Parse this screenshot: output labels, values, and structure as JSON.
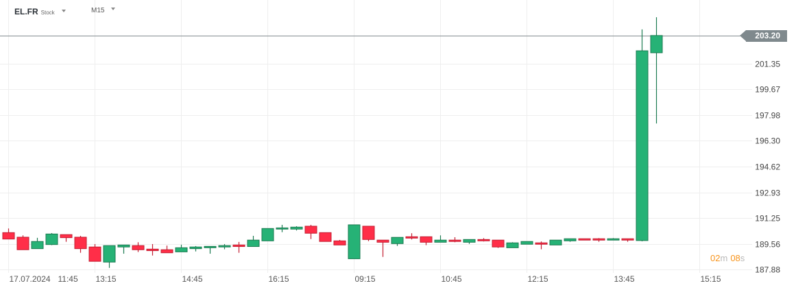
{
  "header": {
    "symbol": "EL.FR",
    "asset_type": "Stock",
    "timeframe": "M15"
  },
  "countdown": {
    "minutes": "02",
    "minutes_unit": "m",
    "seconds": "08",
    "seconds_unit": "s"
  },
  "colors": {
    "up": "#26b276",
    "up_border": "#1b7a50",
    "down": "#ff2e48",
    "down_border": "#c21d31",
    "grid": "#eeeeee",
    "price_line": "#7f898d",
    "countdown": "#f7931a"
  },
  "chart_data": {
    "type": "candlestick",
    "title": "EL.FR M15",
    "current_price": "203.20",
    "ylim": [
      187.88,
      204.5
    ],
    "y_ticks": [
      "201.35",
      "199.67",
      "197.98",
      "196.30",
      "194.62",
      "192.93",
      "191.25",
      "189.56",
      "187.88"
    ],
    "x_labels": [
      "17.07.2024",
      "11:45",
      "13:15",
      "14:45",
      "16:15",
      "09:15",
      "10:45",
      "12:15",
      "13:45",
      "15:15"
    ],
    "grid": true,
    "candles": [
      [
        190.29,
        190.56,
        189.87,
        189.87
      ],
      [
        189.99,
        190.11,
        189.17,
        189.17
      ],
      [
        189.24,
        189.95,
        189.24,
        189.71
      ],
      [
        189.51,
        190.26,
        189.47,
        190.2
      ],
      [
        190.16,
        190.16,
        189.69,
        189.96
      ],
      [
        189.99,
        190.08,
        188.97,
        189.24
      ],
      [
        189.35,
        189.54,
        188.41,
        188.41
      ],
      [
        188.36,
        189.44,
        187.98,
        189.44
      ],
      [
        189.35,
        189.48,
        188.91,
        189.48
      ],
      [
        189.44,
        189.66,
        189.02,
        189.17
      ],
      [
        189.21,
        189.54,
        188.79,
        189.11
      ],
      [
        189.17,
        189.44,
        188.97,
        188.97
      ],
      [
        189.03,
        189.5,
        189.03,
        189.3
      ],
      [
        189.24,
        189.41,
        189.06,
        189.35
      ],
      [
        189.3,
        189.39,
        188.91,
        189.39
      ],
      [
        189.35,
        189.54,
        189.2,
        189.44
      ],
      [
        189.48,
        189.68,
        188.97,
        189.38
      ],
      [
        189.38,
        190.08,
        189.38,
        189.8
      ],
      [
        189.75,
        190.56,
        189.75,
        190.56
      ],
      [
        190.52,
        190.8,
        190.32,
        190.6
      ],
      [
        190.52,
        190.71,
        190.43,
        190.65
      ],
      [
        190.71,
        190.8,
        189.87,
        190.25
      ],
      [
        190.29,
        190.29,
        189.71,
        189.71
      ],
      [
        189.75,
        189.81,
        189.48,
        189.48
      ],
      [
        188.58,
        190.8,
        188.58,
        190.8
      ],
      [
        190.71,
        190.71,
        189.73,
        189.84
      ],
      [
        189.8,
        189.8,
        188.7,
        189.66
      ],
      [
        189.57,
        189.98,
        189.42,
        189.98
      ],
      [
        190.02,
        190.25,
        189.84,
        189.93
      ],
      [
        190.02,
        190.02,
        189.47,
        189.66
      ],
      [
        189.66,
        190.11,
        189.66,
        189.8
      ],
      [
        189.8,
        189.99,
        189.66,
        189.71
      ],
      [
        189.66,
        189.84,
        189.55,
        189.84
      ],
      [
        189.84,
        189.93,
        189.71,
        189.75
      ],
      [
        189.8,
        189.8,
        189.29,
        189.35
      ],
      [
        189.3,
        189.66,
        189.3,
        189.62
      ],
      [
        189.53,
        189.71,
        189.53,
        189.71
      ],
      [
        189.62,
        189.71,
        189.2,
        189.53
      ],
      [
        189.48,
        189.8,
        189.48,
        189.8
      ],
      [
        189.75,
        189.89,
        189.69,
        189.89
      ],
      [
        189.89,
        189.89,
        189.8,
        189.8
      ],
      [
        189.89,
        189.93,
        189.69,
        189.8
      ],
      [
        189.8,
        189.93,
        189.8,
        189.89
      ],
      [
        189.89,
        189.89,
        189.69,
        189.8
      ],
      [
        189.77,
        203.6,
        189.72,
        202.2
      ],
      [
        202.07,
        204.4,
        197.44,
        203.2
      ]
    ],
    "candle_format": [
      "open",
      "high",
      "low",
      "close"
    ]
  }
}
